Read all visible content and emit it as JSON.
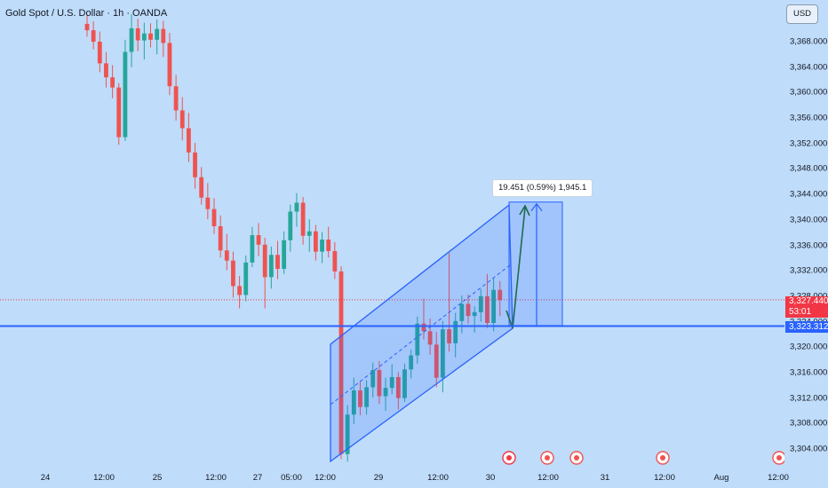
{
  "header": {
    "title": "Gold Spot / U.S. Dollar · 1h · OANDA"
  },
  "axis": {
    "currency_button": "USD",
    "yticks": [
      "3,368.000",
      "3,364.000",
      "3,360.000",
      "3,356.000",
      "3,352.000",
      "3,348.000",
      "3,344.000",
      "3,340.000",
      "3,336.000",
      "3,332.000",
      "3,328.000",
      "3,324.000",
      "3,320.000",
      "3,316.000",
      "3,312.000",
      "3,308.000",
      "3,304.000"
    ],
    "xticks": [
      "24",
      "12:00",
      "25",
      "12:00",
      "27",
      "05:00",
      "12:00",
      "29",
      "12:00",
      "30",
      "12:00",
      "31",
      "12:00",
      "Aug",
      "12:00"
    ]
  },
  "price_labels": {
    "current_price": "3,327.440",
    "countdown": "53:01",
    "support_price": "3,323.312"
  },
  "measure": {
    "label": "19.451 (0.59%) 1,945.1"
  },
  "colors": {
    "background": "#bfdcfa",
    "up": "#26a69a",
    "down": "#ef5350",
    "accent": "#2962ff",
    "current_price_tag": "#f23645"
  },
  "chart_data": {
    "type": "candlestick",
    "symbol": "Gold Spot / U.S. Dollar",
    "timeframe": "1h",
    "source": "OANDA",
    "ylim": [
      3302,
      3372
    ],
    "ohlc": [
      [
        3370.8,
        3372.3,
        3368.8,
        3369.8
      ],
      [
        3369.8,
        3371.2,
        3366.8,
        3368.0
      ],
      [
        3368.0,
        3369.6,
        3363.2,
        3364.6
      ],
      [
        3364.6,
        3366.4,
        3360.8,
        3362.4
      ],
      [
        3362.4,
        3364.3,
        3359.1,
        3360.8
      ],
      [
        3360.8,
        3361.5,
        3351.8,
        3353.0
      ],
      [
        3353.0,
        3368.3,
        3352.4,
        3366.4
      ],
      [
        3366.4,
        3372.3,
        3364.0,
        3370.1
      ],
      [
        3370.1,
        3371.6,
        3366.5,
        3368.2
      ],
      [
        3368.2,
        3371.0,
        3365.2,
        3369.3
      ],
      [
        3369.3,
        3370.9,
        3367.1,
        3368.3
      ],
      [
        3368.3,
        3371.5,
        3366.0,
        3370.0
      ],
      [
        3370.0,
        3371.3,
        3365.6,
        3367.8
      ],
      [
        3367.8,
        3369.4,
        3359.6,
        3361.0
      ],
      [
        3361.0,
        3362.8,
        3355.6,
        3357.2
      ],
      [
        3357.2,
        3359.3,
        3352.5,
        3354.4
      ],
      [
        3354.4,
        3356.8,
        3349.1,
        3350.6
      ],
      [
        3350.6,
        3352.1,
        3344.9,
        3346.7
      ],
      [
        3346.7,
        3348.3,
        3342.4,
        3343.5
      ],
      [
        3343.5,
        3345.8,
        3340.1,
        3341.7
      ],
      [
        3341.7,
        3343.4,
        3337.8,
        3339.0
      ],
      [
        3339.0,
        3340.7,
        3334.1,
        3335.2
      ],
      [
        3335.2,
        3337.8,
        3332.1,
        3333.6
      ],
      [
        3333.6,
        3335.0,
        3327.8,
        3329.6
      ],
      [
        3329.6,
        3331.2,
        3326.1,
        3328.2
      ],
      [
        3328.2,
        3334.4,
        3327.2,
        3333.3
      ],
      [
        3333.3,
        3338.9,
        3332.6,
        3337.6
      ],
      [
        3337.6,
        3339.5,
        3334.3,
        3336.1
      ],
      [
        3336.1,
        3337.2,
        3326.1,
        3331.0
      ],
      [
        3331.0,
        3335.8,
        3329.2,
        3334.5
      ],
      [
        3334.5,
        3336.7,
        3330.7,
        3332.3
      ],
      [
        3332.3,
        3338.2,
        3331.5,
        3336.8
      ],
      [
        3336.8,
        3342.4,
        3335.0,
        3341.3
      ],
      [
        3341.3,
        3344.2,
        3338.9,
        3342.7
      ],
      [
        3342.7,
        3343.6,
        3336.1,
        3337.5
      ],
      [
        3337.5,
        3340.1,
        3335.0,
        3338.2
      ],
      [
        3338.2,
        3339.2,
        3333.6,
        3335.0
      ],
      [
        3335.0,
        3338.1,
        3333.2,
        3336.9
      ],
      [
        3336.9,
        3338.9,
        3334.1,
        3335.1
      ],
      [
        3335.1,
        3336.5,
        3330.7,
        3331.9
      ],
      [
        3331.9,
        3332.7,
        3302.4,
        3303.2
      ],
      [
        3303.2,
        3310.9,
        3302.0,
        3309.4
      ],
      [
        3309.4,
        3315.2,
        3307.9,
        3313.2
      ],
      [
        3313.2,
        3314.6,
        3309.3,
        3310.6
      ],
      [
        3310.6,
        3314.8,
        3309.4,
        3313.7
      ],
      [
        3313.7,
        3317.6,
        3312.1,
        3316.4
      ],
      [
        3316.4,
        3317.8,
        3311.1,
        3312.3
      ],
      [
        3312.3,
        3315.2,
        3310.0,
        3313.6
      ],
      [
        3313.6,
        3317.3,
        3312.6,
        3315.3
      ],
      [
        3315.3,
        3316.1,
        3310.2,
        3312.0
      ],
      [
        3312.0,
        3317.4,
        3311.4,
        3316.5
      ],
      [
        3316.5,
        3319.6,
        3315.1,
        3318.7
      ],
      [
        3318.7,
        3324.8,
        3317.4,
        3323.7
      ],
      [
        3323.7,
        3327.6,
        3321.2,
        3322.5
      ],
      [
        3322.5,
        3324.5,
        3318.8,
        3320.4
      ],
      [
        3320.4,
        3322.4,
        3313.7,
        3315.2
      ],
      [
        3315.2,
        3324.1,
        3312.9,
        3322.8
      ],
      [
        3322.8,
        3334.8,
        3319.3,
        3320.6
      ],
      [
        3320.6,
        3325.4,
        3318.4,
        3324.1
      ],
      [
        3324.1,
        3328.1,
        3322.2,
        3326.8
      ],
      [
        3326.8,
        3328.3,
        3323.7,
        3324.9
      ],
      [
        3324.9,
        3326.4,
        3322.3,
        3325.5
      ],
      [
        3325.5,
        3329.1,
        3324.0,
        3328.0
      ],
      [
        3328.0,
        3331.5,
        3323.0,
        3323.8
      ],
      [
        3323.8,
        3330.8,
        3322.5,
        3329.0
      ],
      [
        3329.0,
        3330.4,
        3324.9,
        3327.4
      ]
    ],
    "annotations": {
      "horizontal_level": 3323.312,
      "current_price": 3327.44,
      "ascending_channel": true,
      "measure_from": 3323.4,
      "measure_to": 3342.8,
      "measure_change": "19.451 (0.59%) 1,945.1"
    }
  }
}
